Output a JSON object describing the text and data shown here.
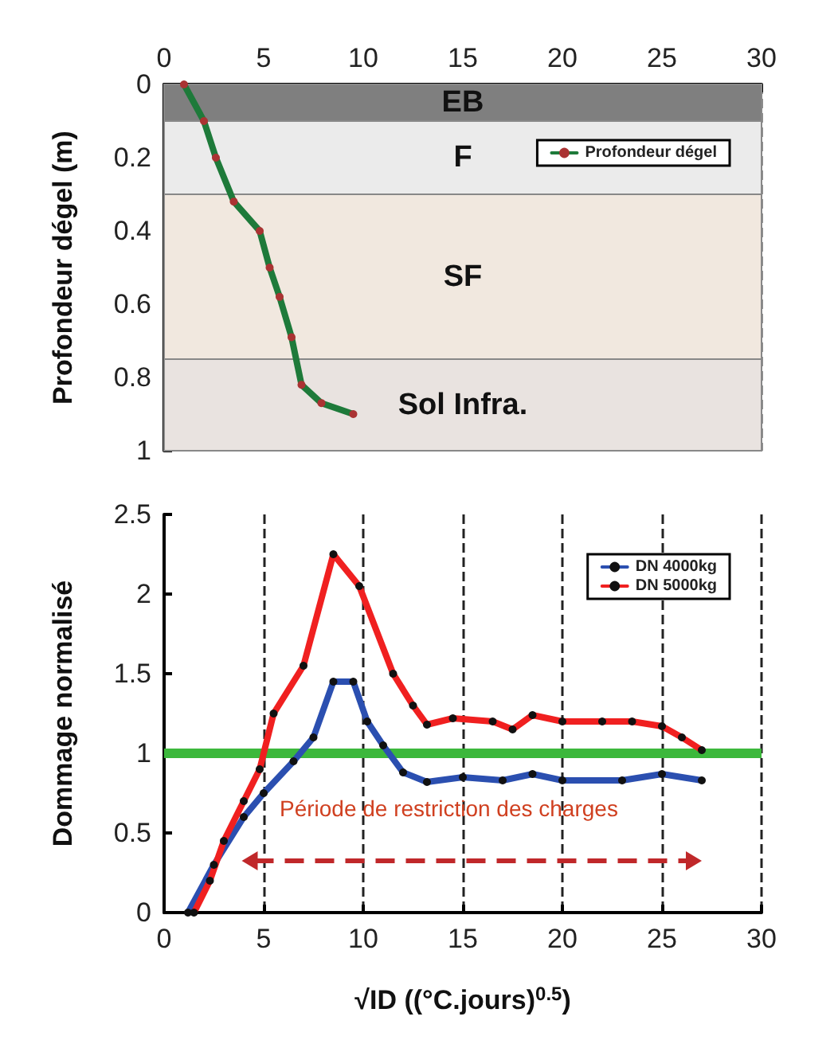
{
  "chart_data": [
    {
      "type": "line",
      "ylabel": "Profondeur dégel (m)",
      "xlim": [
        0,
        30
      ],
      "xticks": [
        0,
        5,
        10,
        15,
        20,
        25,
        30
      ],
      "ylim": [
        1,
        0
      ],
      "yticks": [
        0,
        0.2,
        0.4,
        0.6,
        0.8,
        1
      ],
      "grid": "x",
      "legend": "top right",
      "marker": "circle",
      "line_style": "solid",
      "series": [
        {
          "name": "Profondeur dégel",
          "color": "#1e7a3a",
          "x": [
            1,
            2,
            2.6,
            3.5,
            4.8,
            5.3,
            5.8,
            6.4,
            6.9,
            7.9,
            9.5
          ],
          "values": [
            0,
            0.1,
            0.2,
            0.32,
            0.4,
            0.5,
            0.58,
            0.69,
            0.82,
            0.87,
            0.9
          ]
        }
      ],
      "bands": [
        {
          "axis": "y",
          "from": 0,
          "to": 0.1,
          "label": "EB",
          "color": "#7f7f7f"
        },
        {
          "axis": "y",
          "from": 0.1,
          "to": 0.3,
          "label": "F",
          "color": "#ebebeb"
        },
        {
          "axis": "y",
          "from": 0.3,
          "to": 0.75,
          "label": "SF",
          "color": "#f1e8df"
        },
        {
          "axis": "y",
          "from": 0.75,
          "to": 1,
          "label": "Sol Infra.",
          "color": "#e9e3e0"
        }
      ]
    },
    {
      "type": "line",
      "xlabel": "√ID ((°C.jours)$^{0.5}$)",
      "ylabel": "Dommage normalisé",
      "xlim": [
        0,
        30
      ],
      "xticks": [
        0,
        5,
        10,
        15,
        20,
        25,
        30
      ],
      "ylim": [
        0,
        2.5
      ],
      "yticks": [
        0,
        0.5,
        1,
        1.5,
        2,
        2.5
      ],
      "grid": "x",
      "legend": "top right",
      "marker": "circle",
      "line_style": "solid",
      "series": [
        {
          "name": "DN 4000kg",
          "color": "#2b4fb0",
          "x": [
            1.2,
            2.5,
            4,
            5,
            6.5,
            7.5,
            8.5,
            9.5,
            10.2,
            11,
            12,
            13.2,
            15,
            17,
            18.5,
            20,
            23,
            25,
            27
          ],
          "values": [
            0,
            0.3,
            0.6,
            0.75,
            0.95,
            1.1,
            1.45,
            1.45,
            1.2,
            1.05,
            0.88,
            0.82,
            0.85,
            0.83,
            0.87,
            0.83,
            0.83,
            0.87,
            0.83
          ]
        },
        {
          "name": "DN 5000kg",
          "color": "#f02020",
          "x": [
            1.5,
            2.3,
            3,
            4,
            4.8,
            5.5,
            7,
            8.5,
            9.8,
            11.5,
            12.5,
            13.2,
            14.5,
            16.5,
            17.5,
            18.5,
            20,
            22,
            23.5,
            25,
            26,
            27
          ],
          "values": [
            0,
            0.2,
            0.45,
            0.7,
            0.9,
            1.25,
            1.55,
            2.25,
            2.05,
            1.5,
            1.3,
            1.18,
            1.22,
            1.2,
            1.15,
            1.24,
            1.2,
            1.2,
            1.2,
            1.17,
            1.1,
            1.02
          ]
        }
      ],
      "ref_lines": [
        {
          "axis": "y",
          "value": 1,
          "color": "#3cb83c",
          "line_style": "solid"
        }
      ],
      "annotations": [
        "Période de restriction des charges"
      ]
    }
  ]
}
